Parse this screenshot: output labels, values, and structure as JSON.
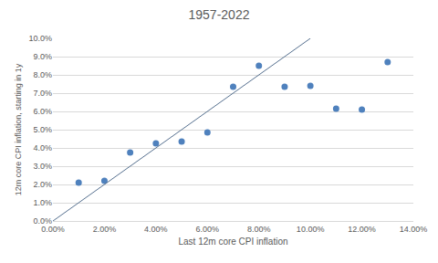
{
  "chart_data": {
    "type": "scatter",
    "title": "1957-2022",
    "x_label": "Last 12m core CPI inflation",
    "y_label": "12m core CPI inflation, starting in 1y",
    "series": [
      {
        "type": "scatter",
        "color": "#4f81bd",
        "marker": "circle",
        "x": [
          1,
          2,
          3,
          4,
          5,
          6,
          7,
          8,
          9,
          10,
          11,
          12,
          13
        ],
        "values": [
          2.1,
          2.2,
          3.75,
          4.25,
          4.35,
          4.85,
          7.35,
          8.5,
          7.35,
          7.4,
          6.15,
          6.1,
          8.7
        ]
      },
      {
        "type": "line",
        "color": "#56708f",
        "line_style": "solid",
        "x": [
          0,
          10
        ],
        "values": [
          0,
          10
        ]
      }
    ],
    "xlim": [
      0,
      14
    ],
    "xticks": [
      {
        "value": 0,
        "label": "0.00%"
      },
      {
        "value": 2,
        "label": "2.00%"
      },
      {
        "value": 4,
        "label": "4.00%"
      },
      {
        "value": 6,
        "label": "6.00%"
      },
      {
        "value": 8,
        "label": "8.00%"
      },
      {
        "value": 10,
        "label": "10.00%"
      },
      {
        "value": 12,
        "label": "12.00%"
      },
      {
        "value": 14,
        "label": "14.00%"
      }
    ],
    "ylim": [
      0,
      10
    ],
    "yticks": [
      {
        "value": 0,
        "label": "0.0%"
      },
      {
        "value": 1,
        "label": "1.0%"
      },
      {
        "value": 2,
        "label": "2.0%"
      },
      {
        "value": 3,
        "label": "3.0%"
      },
      {
        "value": 4,
        "label": "4.0%"
      },
      {
        "value": 5,
        "label": "5.0%"
      },
      {
        "value": 6,
        "label": "6.0%"
      },
      {
        "value": 7,
        "label": "7.0%"
      },
      {
        "value": 8,
        "label": "8.0%"
      },
      {
        "value": 9,
        "label": "9.0%"
      },
      {
        "value": 10,
        "label": "10.0%"
      }
    ],
    "grid": true
  }
}
